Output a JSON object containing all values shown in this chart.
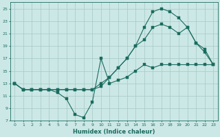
{
  "xlabel": "Humidex (Indice chaleur)",
  "bg_color": "#cce8e6",
  "grid_color": "#aaccca",
  "line_color": "#1a6b5e",
  "line1_x": [
    0,
    1,
    2,
    3,
    4,
    5,
    6,
    7,
    8,
    9,
    10,
    11,
    12,
    13,
    14,
    15,
    16,
    17,
    18,
    19,
    20,
    21,
    22,
    23
  ],
  "line1_y": [
    13,
    12,
    12,
    12,
    12,
    11.5,
    10.5,
    8.0,
    7.5,
    10.0,
    17.0,
    13.0,
    13.5,
    14.0,
    15.0,
    16.0,
    15.5,
    16.0,
    16.0,
    16.0,
    16.0,
    16.0,
    16.0,
    16.0
  ],
  "line2_x": [
    0,
    1,
    2,
    3,
    4,
    5,
    6,
    7,
    8,
    9,
    10,
    11,
    12,
    13,
    14,
    15,
    16,
    17,
    18,
    19,
    20,
    21,
    22,
    23
  ],
  "line2_y": [
    13,
    12,
    12,
    12,
    12,
    12,
    12,
    12,
    12,
    12,
    13,
    14,
    15.5,
    17,
    19,
    20,
    22,
    22.5,
    22,
    21,
    22,
    19.5,
    18.0,
    16
  ],
  "line3_x": [
    0,
    1,
    2,
    3,
    4,
    5,
    6,
    7,
    8,
    9,
    10,
    11,
    12,
    13,
    14,
    15,
    16,
    17,
    18,
    19,
    20,
    21,
    22,
    23
  ],
  "line3_y": [
    13,
    12,
    12,
    12,
    12,
    12,
    12,
    12,
    12,
    12,
    12.5,
    14,
    15.5,
    17,
    19,
    22,
    24.5,
    25,
    24.5,
    23.5,
    22,
    19.5,
    18.5,
    16
  ],
  "xlim": [
    0,
    23
  ],
  "ylim": [
    7,
    26
  ],
  "yticks": [
    7,
    9,
    11,
    13,
    15,
    17,
    19,
    21,
    23,
    25
  ],
  "xticks": [
    0,
    1,
    2,
    3,
    4,
    5,
    6,
    7,
    8,
    9,
    10,
    11,
    12,
    13,
    14,
    15,
    16,
    17,
    18,
    19,
    20,
    21,
    22,
    23
  ]
}
